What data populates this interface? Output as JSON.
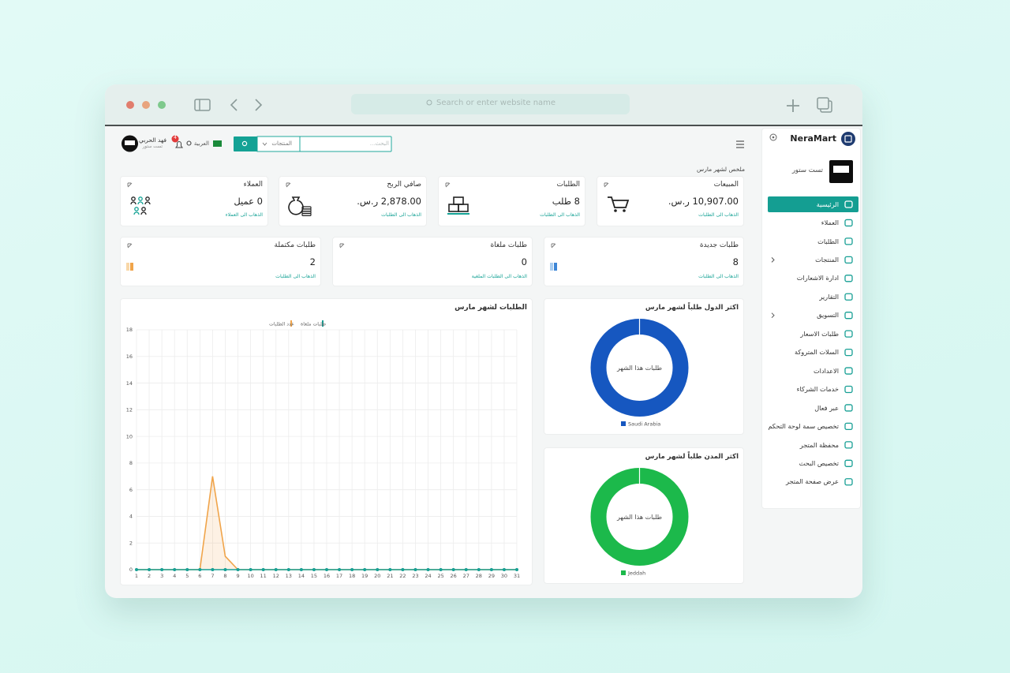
{
  "browser": {
    "address_placeholder": "Search or enter website name"
  },
  "sidebar": {
    "brand": "NeraMart",
    "store": "تست ستور",
    "nav": [
      {
        "label": "الرئيسية",
        "active": true
      },
      {
        "label": "العملاء"
      },
      {
        "label": "الطلبات"
      },
      {
        "label": "المنتجات",
        "submenu": true
      },
      {
        "label": "ادارة الاشعارات"
      },
      {
        "label": "التقارير"
      },
      {
        "label": "التسويق",
        "submenu": true
      },
      {
        "label": "طلبات الاسعار"
      },
      {
        "label": "السلات المتروكة"
      },
      {
        "label": "الاعدادات"
      },
      {
        "label": "خدمات الشركاء"
      },
      {
        "label": "عبر فعال"
      },
      {
        "label": "تخصيص سمة لوحة التحكم"
      },
      {
        "label": "محفظة المتجر"
      },
      {
        "label": "تخصيص البحث"
      },
      {
        "label": "عرض صفحة المتجر"
      }
    ]
  },
  "header": {
    "search_placeholder": "البحث...",
    "search_scope": "المنتجات",
    "language": "العربية",
    "notifications": 4,
    "user_name": "فهد الحربي",
    "user_store": "تست ستور"
  },
  "summary": {
    "title": "ملخص لشهر مارس",
    "cards": [
      {
        "title": "المبيعات",
        "value": "10,907.00 ر.س.",
        "link": "الذهاب الى الطلبات"
      },
      {
        "title": "الطلبات",
        "value": "8 طلب",
        "link": "الذهاب الى الطلبات"
      },
      {
        "title": "صافي الربح",
        "value": "2,878.00 ر.س.",
        "link": "الذهاب الى الطلبات"
      },
      {
        "title": "العملاء",
        "value": "0 عميل",
        "link": "الذهاب الى العملاء"
      }
    ],
    "status_cards": [
      {
        "title": "طلبات جديدة",
        "value": 8,
        "link": "الذهاب الى الطلبات"
      },
      {
        "title": "طلبات ملغاة",
        "value": 0,
        "link": "الذهاب الى الطلبات الملغية"
      },
      {
        "title": "طلبات مكتملة",
        "value": 2,
        "link": "الذهاب الى الطلبات"
      }
    ]
  },
  "chart_data": [
    {
      "type": "line",
      "title": "الطلبات لشهر مارس",
      "x": [
        1,
        2,
        3,
        4,
        5,
        6,
        7,
        8,
        9,
        10,
        11,
        12,
        13,
        14,
        15,
        16,
        17,
        18,
        19,
        20,
        21,
        22,
        23,
        24,
        25,
        26,
        27,
        28,
        29,
        30,
        31
      ],
      "xlim": [
        1,
        31
      ],
      "xticks": [
        1,
        2,
        3,
        4,
        5,
        6,
        7,
        8,
        9,
        10,
        11,
        12,
        13,
        14,
        15,
        16,
        17,
        18,
        19,
        20,
        21,
        22,
        23,
        24,
        25,
        26,
        27,
        28,
        29,
        30,
        31
      ],
      "ylim": [
        0,
        18
      ],
      "yticks": [
        0,
        2,
        4,
        6,
        8,
        10,
        12,
        14,
        16,
        18
      ],
      "grid": true,
      "series": [
        {
          "name": "عدد الطلبات",
          "color": "#f0a44a",
          "values": [
            0,
            0,
            0,
            0,
            0,
            0,
            7,
            1,
            0,
            0,
            0,
            0,
            0,
            0,
            0,
            0,
            0,
            0,
            0,
            0,
            0,
            0,
            0,
            0,
            0,
            0,
            0,
            0,
            0,
            0,
            0
          ]
        },
        {
          "name": "طلبات ملغاة",
          "color": "#169f94",
          "values": [
            0,
            0,
            0,
            0,
            0,
            0,
            0,
            0,
            0,
            0,
            0,
            0,
            0,
            0,
            0,
            0,
            0,
            0,
            0,
            0,
            0,
            0,
            0,
            0,
            0,
            0,
            0,
            0,
            0,
            0,
            0
          ]
        }
      ]
    },
    {
      "type": "pie",
      "title": "اكثر الدول طلباً لشهر مارس",
      "center_label": "طلبات هذا الشهر",
      "categories": [
        "Saudi Arabia"
      ],
      "values": [
        100
      ],
      "colors": [
        "#1657c0"
      ]
    },
    {
      "type": "pie",
      "title": "اكثر المدن طلباً لشهر مارس",
      "center_label": "طلبات هذا الشهر",
      "categories": [
        "Jeddah"
      ],
      "values": [
        100
      ],
      "colors": [
        "#1cb94b"
      ]
    }
  ]
}
